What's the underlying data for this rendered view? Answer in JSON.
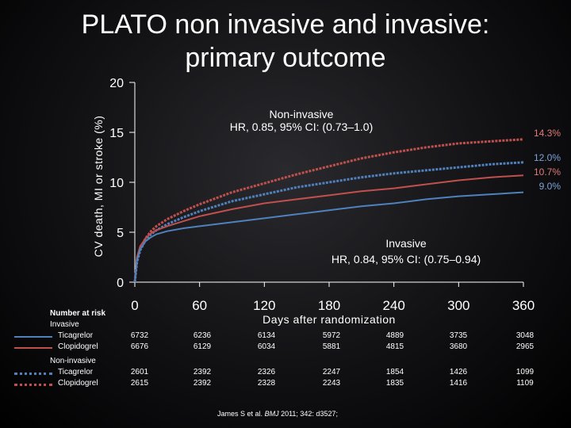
{
  "slide": {
    "title_line1": "PLATO non invasive and invasive:",
    "title_line2": "primary outcome",
    "citation_prefix": "James S et al. ",
    "citation_journal": "BMJ",
    "citation_suffix": " 2011; 342: d3527;"
  },
  "chart_data": {
    "type": "line",
    "ylabel": "CV death, MI or stroke (%)",
    "xlabel": "Days after randomization",
    "xlim": [
      0,
      360
    ],
    "ylim": [
      0,
      20
    ],
    "x_ticks": [
      "0",
      "60",
      "120",
      "180",
      "240",
      "300",
      "360"
    ],
    "x_tick_values": [
      0,
      60,
      120,
      180,
      240,
      300,
      360
    ],
    "y_ticks": [
      0,
      5,
      10,
      15,
      20
    ],
    "y_tick_labels": [
      "0",
      "5",
      "10",
      "15",
      "20"
    ],
    "annotations": [
      {
        "line1": "Non-invasive",
        "line2": "HR, 0.85, 95% CI: (0.73–1.0)"
      },
      {
        "line1": "Invasive",
        "line2": "HR, 0.84, 95% CI: (0.75–0.94)"
      }
    ],
    "series": [
      {
        "label": "Non-invasive Clopidogrel",
        "group": "Non-invasive",
        "arm": "Clopidogrel",
        "color": "#c0504d",
        "dashed": true,
        "end_label": "14.3%",
        "x": [
          0,
          2,
          5,
          10,
          15,
          20,
          30,
          45,
          60,
          90,
          120,
          150,
          180,
          210,
          240,
          270,
          300,
          330,
          360
        ],
        "y": [
          0,
          2.2,
          3.4,
          4.4,
          5.1,
          5.6,
          6.3,
          7.1,
          7.8,
          9.0,
          9.9,
          10.8,
          11.6,
          12.4,
          13.0,
          13.5,
          13.9,
          14.1,
          14.3
        ]
      },
      {
        "label": "Non-invasive Ticagrelor",
        "group": "Non-invasive",
        "arm": "Ticagrelor",
        "color": "#4f81bd",
        "dashed": true,
        "end_label": "12.0%",
        "x": [
          0,
          2,
          5,
          10,
          15,
          20,
          30,
          45,
          60,
          90,
          120,
          150,
          180,
          210,
          240,
          270,
          300,
          330,
          360
        ],
        "y": [
          0,
          2.0,
          3.2,
          4.2,
          4.8,
          5.2,
          5.8,
          6.5,
          7.1,
          8.1,
          8.8,
          9.5,
          10.0,
          10.5,
          10.9,
          11.2,
          11.5,
          11.8,
          12.0
        ]
      },
      {
        "label": "Invasive Clopidogrel",
        "group": "Invasive",
        "arm": "Clopidogrel",
        "color": "#c0504d",
        "dashed": false,
        "end_label": "10.7%",
        "x": [
          0,
          2,
          5,
          10,
          15,
          20,
          30,
          45,
          60,
          90,
          120,
          150,
          180,
          210,
          240,
          270,
          300,
          330,
          360
        ],
        "y": [
          0,
          2.5,
          3.6,
          4.4,
          4.9,
          5.2,
          5.6,
          6.1,
          6.6,
          7.3,
          7.9,
          8.3,
          8.7,
          9.1,
          9.4,
          9.8,
          10.2,
          10.5,
          10.7
        ]
      },
      {
        "label": "Invasive Ticagrelor",
        "group": "Invasive",
        "arm": "Ticagrelor",
        "color": "#4f81bd",
        "dashed": false,
        "end_label": "9.0%",
        "x": [
          0,
          2,
          5,
          10,
          15,
          20,
          30,
          45,
          60,
          90,
          120,
          150,
          180,
          210,
          240,
          270,
          300,
          330,
          360
        ],
        "y": [
          0,
          2.2,
          3.3,
          4.1,
          4.5,
          4.8,
          5.1,
          5.4,
          5.6,
          6.0,
          6.4,
          6.8,
          7.2,
          7.6,
          7.9,
          8.3,
          8.6,
          8.8,
          9.0
        ]
      }
    ]
  },
  "risk_table": {
    "title": "Number at risk",
    "groups": [
      {
        "name": "Invasive",
        "rows": [
          {
            "arm": "Ticagrelor",
            "color": "#4f81bd",
            "dashed": false,
            "values": [
              "6732",
              "6236",
              "6134",
              "5972",
              "4889",
              "3735",
              "3048"
            ]
          },
          {
            "arm": "Clopidogrel",
            "color": "#c0504d",
            "dashed": false,
            "values": [
              "6676",
              "6129",
              "6034",
              "5881",
              "4815",
              "3680",
              "2965"
            ]
          }
        ]
      },
      {
        "name": "Non-invasive",
        "rows": [
          {
            "arm": "Ticagrelor",
            "color": "#4f81bd",
            "dashed": true,
            "values": [
              "2601",
              "2392",
              "2326",
              "2247",
              "1854",
              "1426",
              "1099"
            ]
          },
          {
            "arm": "Clopidogrel",
            "color": "#c0504d",
            "dashed": true,
            "values": [
              "2615",
              "2392",
              "2328",
              "2243",
              "1835",
              "1416",
              "1109"
            ]
          }
        ]
      }
    ]
  }
}
